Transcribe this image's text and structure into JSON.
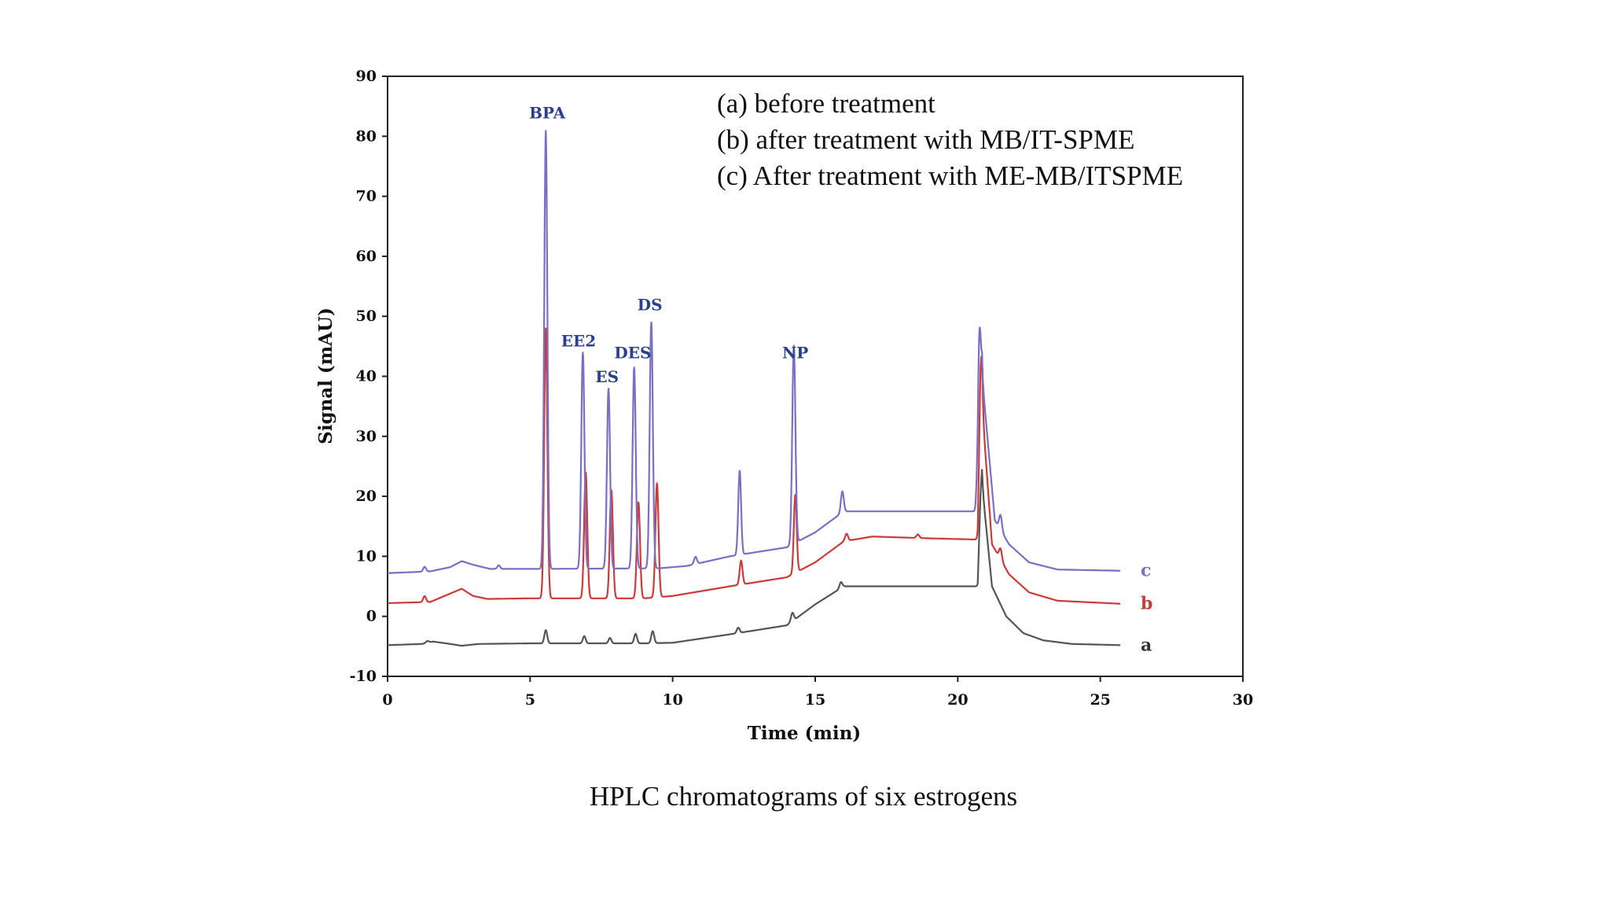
{
  "chart_data": {
    "type": "line",
    "xlabel": "Time (min)",
    "ylabel": "Signal (mAU)",
    "xlim": [
      0,
      30
    ],
    "ylim": [
      -10,
      90
    ],
    "x_ticks": [
      0,
      5,
      10,
      15,
      20,
      25,
      30
    ],
    "y_ticks": [
      -10,
      0,
      10,
      20,
      30,
      40,
      50,
      60,
      70,
      80,
      90
    ],
    "grid": false,
    "legend_lines": [
      "(a) before treatment",
      "(b) after treatment with MB/IT-SPME",
      "(c) After treatment with ME-MB/ITSPME"
    ],
    "caption": "HPLC chromatograms of six estrogens",
    "peak_labels": [
      {
        "text": "BPA",
        "x": 5.6,
        "y": 83
      },
      {
        "text": "EE2",
        "x": 6.7,
        "y": 45
      },
      {
        "text": "ES",
        "x": 7.7,
        "y": 39
      },
      {
        "text": "DES",
        "x": 8.6,
        "y": 43
      },
      {
        "text": "DS",
        "x": 9.2,
        "y": 51
      },
      {
        "text": "NP",
        "x": 14.3,
        "y": 43
      }
    ],
    "series": [
      {
        "name": "a",
        "color": "#555555",
        "baseline": [
          [
            0,
            -4.8
          ],
          [
            1.2,
            -4.6
          ],
          [
            1.6,
            -4.2
          ],
          [
            2.2,
            -4.6
          ],
          [
            2.6,
            -4.9
          ],
          [
            3.2,
            -4.6
          ],
          [
            5,
            -4.5
          ],
          [
            9,
            -4.5
          ],
          [
            10,
            -4.4
          ],
          [
            12,
            -3
          ],
          [
            14,
            -1.5
          ],
          [
            15,
            2
          ],
          [
            16,
            5
          ],
          [
            20.7,
            5
          ],
          [
            20.85,
            22
          ],
          [
            21.2,
            5
          ],
          [
            21.7,
            0
          ],
          [
            22.3,
            -2.8
          ],
          [
            23,
            -4
          ],
          [
            24,
            -4.6
          ],
          [
            25.7,
            -4.8
          ]
        ],
        "peaks": [
          [
            1.4,
            0.3
          ],
          [
            5.55,
            2.2
          ],
          [
            6.9,
            1.2
          ],
          [
            7.8,
            0.9
          ],
          [
            8.7,
            1.6
          ],
          [
            9.3,
            2.0
          ],
          [
            12.3,
            0.9
          ],
          [
            14.2,
            1.4
          ],
          [
            15.9,
            1.0
          ],
          [
            20.8,
            4.0
          ]
        ]
      },
      {
        "name": "b",
        "color": "#cc3a3a",
        "baseline": [
          [
            0,
            2.2
          ],
          [
            1.5,
            2.4
          ],
          [
            2.2,
            3.8
          ],
          [
            2.6,
            4.6
          ],
          [
            3,
            3.4
          ],
          [
            3.5,
            2.9
          ],
          [
            5,
            3
          ],
          [
            9,
            3
          ],
          [
            10,
            3.4
          ],
          [
            12,
            5
          ],
          [
            14,
            6.5
          ],
          [
            15,
            9
          ],
          [
            16,
            12.5
          ],
          [
            17,
            13.3
          ],
          [
            19,
            13
          ],
          [
            20.7,
            12.8
          ],
          [
            20.85,
            35
          ],
          [
            21.2,
            12
          ],
          [
            21.8,
            7
          ],
          [
            22.5,
            4
          ],
          [
            23.5,
            2.6
          ],
          [
            25.7,
            2.1
          ]
        ],
        "peaks": [
          [
            1.3,
            1.0
          ],
          [
            5.55,
            45
          ],
          [
            6.95,
            21
          ],
          [
            7.85,
            18
          ],
          [
            8.8,
            16
          ],
          [
            9.45,
            19
          ],
          [
            12.4,
            4
          ],
          [
            14.3,
            13
          ],
          [
            16.1,
            1.2
          ],
          [
            18.6,
            0.6
          ],
          [
            20.8,
            13.5
          ],
          [
            21.5,
            1.8
          ]
        ]
      },
      {
        "name": "c",
        "color": "#7b6fc4",
        "baseline": [
          [
            0,
            7.2
          ],
          [
            1.5,
            7.5
          ],
          [
            2.2,
            8.2
          ],
          [
            2.6,
            9.2
          ],
          [
            3,
            8.6
          ],
          [
            3.6,
            7.9
          ],
          [
            5,
            7.9
          ],
          [
            9.5,
            8
          ],
          [
            10.5,
            8.4
          ],
          [
            12,
            10
          ],
          [
            14,
            11.5
          ],
          [
            15,
            14
          ],
          [
            16,
            17.5
          ],
          [
            20.7,
            17.5
          ],
          [
            20.85,
            40
          ],
          [
            21.3,
            16
          ],
          [
            21.8,
            12
          ],
          [
            22.5,
            9
          ],
          [
            23.5,
            7.8
          ],
          [
            25.7,
            7.6
          ]
        ],
        "peaks": [
          [
            1.3,
            0.8
          ],
          [
            3.9,
            0.6
          ],
          [
            5.55,
            73
          ],
          [
            6.85,
            36
          ],
          [
            7.75,
            30
          ],
          [
            8.65,
            33.5
          ],
          [
            9.25,
            41
          ],
          [
            10.8,
            1.2
          ],
          [
            12.35,
            14
          ],
          [
            14.25,
            33
          ],
          [
            15.95,
            3.5
          ],
          [
            20.75,
            21.5
          ],
          [
            21.5,
            2.5
          ]
        ]
      }
    ]
  }
}
